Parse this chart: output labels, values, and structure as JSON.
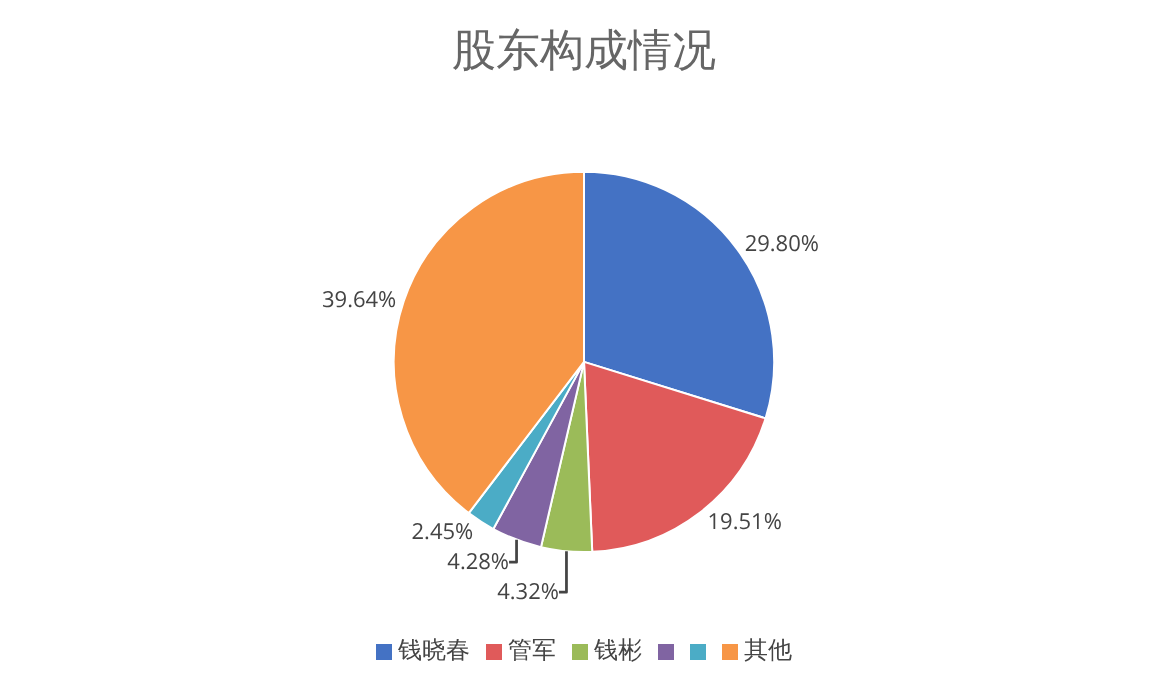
{
  "chart_data": {
    "type": "pie",
    "title": "股东构成情况",
    "categories": [
      "钱晓春",
      "管军",
      "钱彬",
      null,
      null,
      "其他"
    ],
    "values": [
      29.8,
      19.51,
      4.32,
      4.28,
      2.45,
      39.64
    ],
    "value_labels": [
      "29.80%",
      "19.51%",
      "4.32%",
      "4.28%",
      "2.45%",
      "39.64%"
    ],
    "colors": [
      "#4472c4",
      "#e05a5a",
      "#9bbb59",
      "#8064a2",
      "#4bacc6",
      "#f79646"
    ],
    "legend": "bottom"
  }
}
